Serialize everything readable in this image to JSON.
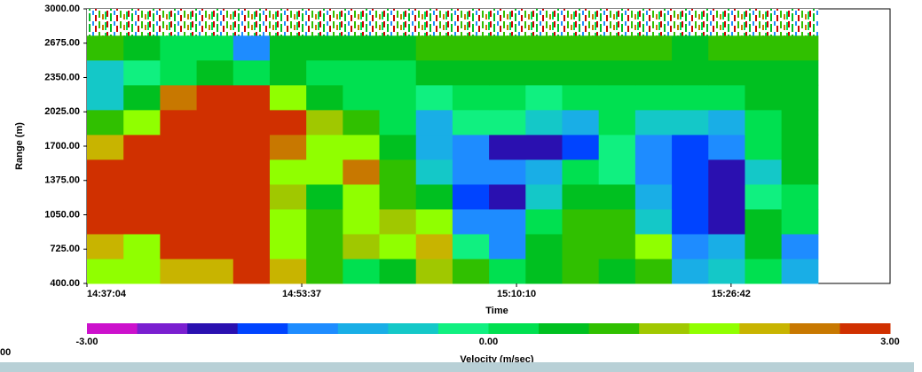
{
  "chart_data": {
    "type": "heatmap",
    "x_label": "Time",
    "y_label": "Range (m)",
    "x": [
      "14:37:04",
      "14:39:53",
      "14:42:42",
      "14:45:31",
      "14:48:20",
      "14:51:09",
      "14:53:58",
      "14:56:47",
      "14:59:36",
      "15:02:25",
      "15:05:14",
      "15:08:03",
      "15:10:52",
      "15:13:41",
      "15:16:30",
      "15:19:19",
      "15:22:08",
      "15:24:57",
      "15:27:46",
      "15:30:35",
      "15:33:24"
    ],
    "y": [
      400,
      635,
      870,
      1105,
      1340,
      1575,
      1810,
      2045,
      2280,
      2515,
      2750,
      3000
    ],
    "values": [
      [
        1.5,
        1.8,
        2.2,
        2.0,
        2.8,
        2.2,
        0.8,
        0.3,
        0.5,
        1.2,
        0.9,
        0.2,
        0.6,
        1.0,
        0.4,
        0.8,
        -0.8,
        -0.5,
        0.2,
        -1.0
      ],
      [
        2.0,
        1.5,
        2.8,
        2.8,
        2.8,
        1.5,
        0.9,
        1.2,
        1.8,
        2.0,
        -0.2,
        -1.2,
        0.5,
        1.0,
        0.8,
        1.5,
        -1.2,
        -1.0,
        0.6,
        -1.5
      ],
      [
        2.8,
        2.8,
        2.8,
        2.8,
        2.8,
        1.8,
        1.0,
        1.5,
        1.2,
        1.5,
        -1.5,
        -1.5,
        0.2,
        0.8,
        1.0,
        -0.5,
        -1.8,
        -2.2,
        0.5,
        0.3
      ],
      [
        2.8,
        2.8,
        2.8,
        2.8,
        2.8,
        1.2,
        0.6,
        1.8,
        1.0,
        0.5,
        -1.8,
        -2.0,
        -0.5,
        0.6,
        0.5,
        -1.0,
        -1.8,
        -2.0,
        -0.2,
        0.2
      ],
      [
        2.8,
        2.8,
        2.8,
        2.8,
        2.8,
        1.5,
        1.5,
        2.4,
        0.8,
        -0.5,
        -1.5,
        -1.2,
        -0.8,
        0.2,
        -0.2,
        -1.5,
        -1.8,
        -2.2,
        -0.5,
        0.5
      ],
      [
        2.2,
        2.8,
        2.8,
        2.8,
        2.8,
        2.5,
        1.5,
        1.8,
        0.5,
        -1.0,
        -1.5,
        -2.0,
        -2.2,
        -1.8,
        -0.3,
        -1.2,
        -1.8,
        -1.5,
        0.2,
        0.6
      ],
      [
        1.0,
        1.5,
        2.8,
        2.8,
        2.8,
        2.8,
        1.2,
        0.8,
        0.3,
        -0.8,
        -0.3,
        -0.2,
        -0.5,
        -0.8,
        0.1,
        -0.5,
        -0.6,
        -0.8,
        0.3,
        0.4
      ],
      [
        -0.5,
        0.6,
        2.5,
        2.8,
        2.8,
        1.5,
        0.5,
        0.2,
        0.1,
        -0.2,
        0.0,
        0.1,
        -0.1,
        0.2,
        0.0,
        0.3,
        0.1,
        0.2,
        0.4,
        0.5
      ],
      [
        -0.6,
        -0.3,
        0.3,
        0.4,
        0.2,
        0.6,
        0.1,
        0.3,
        0.2,
        0.4,
        0.5,
        0.6,
        0.4,
        0.5,
        0.7,
        0.6,
        0.5,
        0.6,
        0.5,
        0.7
      ],
      [
        0.8,
        0.6,
        0.3,
        0.2,
        -1.5,
        0.5,
        0.4,
        0.6,
        0.7,
        0.8,
        0.8,
        0.9,
        0.8,
        0.8,
        0.9,
        0.8,
        0.7,
        0.8,
        0.8,
        0.9
      ],
      [
        null,
        null,
        null,
        null,
        null,
        null,
        null,
        null,
        null,
        null,
        null,
        null,
        null,
        null,
        null,
        null,
        null,
        null,
        null,
        null
      ]
    ],
    "xlim": [
      "14:37:04",
      "15:38:57"
    ],
    "xticks": [
      "14:37:04",
      "14:53:37",
      "15:10:10",
      "15:26:42"
    ],
    "ylim": [
      400,
      3000
    ],
    "yticks": [
      {
        "value": 400,
        "label": "400.00"
      },
      {
        "value": 725,
        "label": "725.00"
      },
      {
        "value": 1050,
        "label": "1050.00"
      },
      {
        "value": 1375,
        "label": "1375.00"
      },
      {
        "value": 1700,
        "label": "1700.00"
      },
      {
        "value": 2025,
        "label": "2025.00"
      },
      {
        "value": 2350,
        "label": "2350.00"
      },
      {
        "value": 2675,
        "label": "2675.00"
      },
      {
        "value": 3000,
        "label": "3000.00"
      }
    ],
    "colorbar": {
      "label": "Velocity (m/sec)",
      "range": [
        -3,
        3
      ],
      "colors": [
        "#cc11cc",
        "#7a1fd0",
        "#2a10b0",
        "#0044ff",
        "#1e8cff",
        "#19aee6",
        "#14c8c8",
        "#10f080",
        "#00e050",
        "#00c020",
        "#30c000",
        "#a0c800",
        "#90ff00",
        "#c8b400",
        "#c87800",
        "#d03000"
      ],
      "over_color": "#d00000",
      "ticks": [
        {
          "value": -3,
          "label": "-3.00"
        },
        {
          "value": 0,
          "label": "0.00"
        },
        {
          "value": 3,
          "label": "3.00"
        }
      ]
    }
  },
  "clipped_label": "00"
}
